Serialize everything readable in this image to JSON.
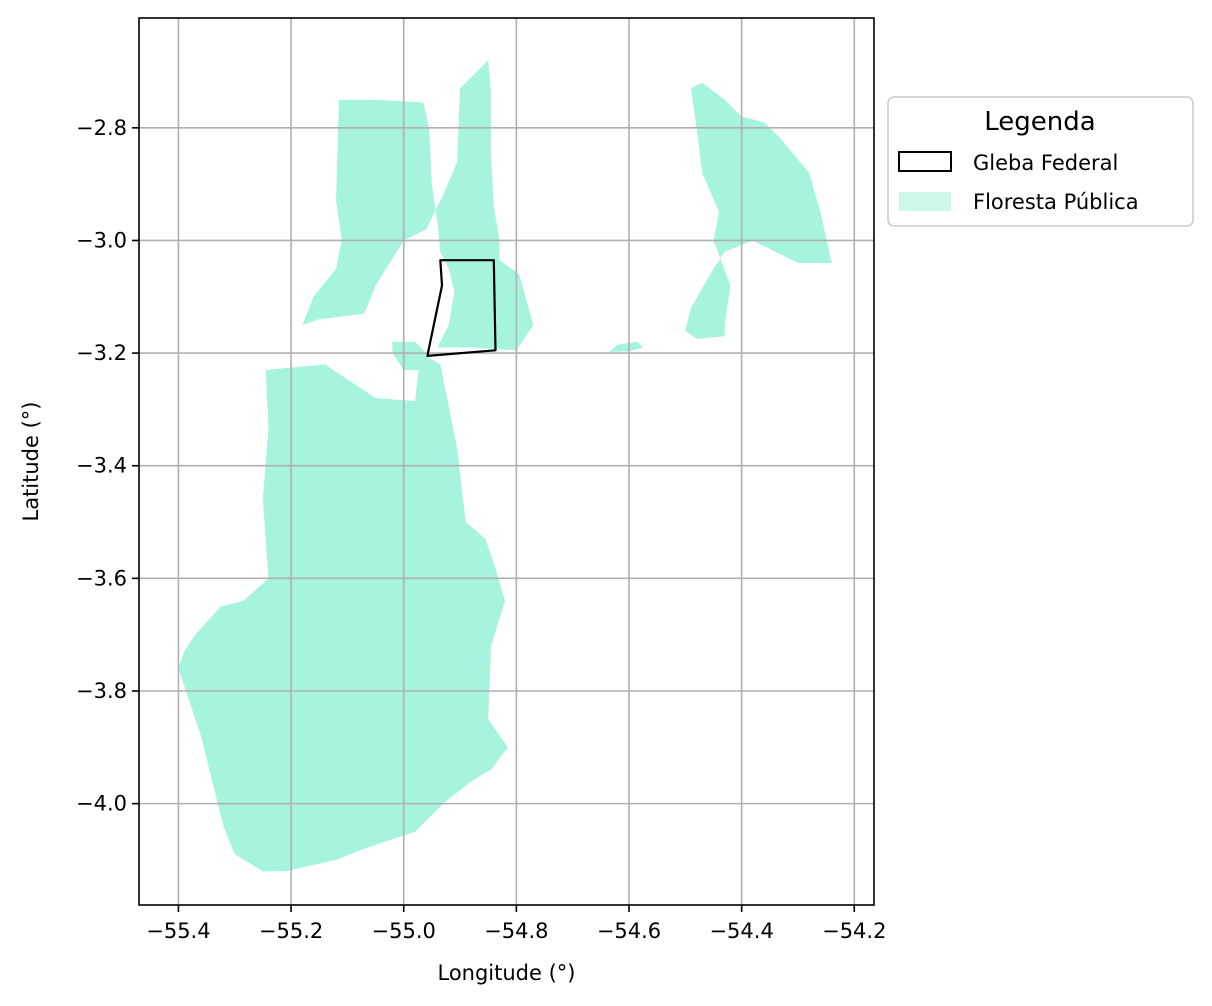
{
  "chart_data": {
    "type": "map",
    "xlabel": "Longitude (°)",
    "ylabel": "Latitude (°)",
    "xlim": [
      -55.47,
      -54.165
    ],
    "ylim": [
      -4.18,
      -2.605
    ],
    "x_ticks": [
      -55.4,
      -55.2,
      -55.0,
      -54.8,
      -54.6,
      -54.4,
      -54.2
    ],
    "x_tick_labels": [
      "−55.4",
      "−55.2",
      "−55.0",
      "−54.8",
      "−54.6",
      "−54.4",
      "−54.2"
    ],
    "y_ticks": [
      -2.8,
      -3.0,
      -3.2,
      -3.4,
      -3.6,
      -3.8,
      -4.0
    ],
    "y_tick_labels": [
      "−2.8",
      "−3.0",
      "−3.2",
      "−3.4",
      "−3.6",
      "−3.8",
      "−4.0"
    ],
    "grid": true,
    "legend": {
      "title": "Legenda",
      "placement": "outside-upper-right",
      "entries": [
        {
          "label": "Gleba Federal",
          "style": "outline",
          "color": "#000000"
        },
        {
          "label": "Floresta Pública",
          "style": "fill",
          "color": "#a6f4dd"
        }
      ]
    },
    "layers": {
      "floresta_publica": {
        "color": "#a6f4dd",
        "polygons": [
          [
            [
              -55.245,
              -3.23
            ],
            [
              -55.14,
              -3.22
            ],
            [
              -55.05,
              -3.28
            ],
            [
              -54.98,
              -3.285
            ],
            [
              -54.97,
              -3.2
            ],
            [
              -54.935,
              -3.22
            ],
            [
              -54.905,
              -3.37
            ],
            [
              -54.89,
              -3.5
            ],
            [
              -54.855,
              -3.53
            ],
            [
              -54.838,
              -3.58
            ],
            [
              -54.82,
              -3.64
            ],
            [
              -54.845,
              -3.72
            ],
            [
              -54.85,
              -3.85
            ],
            [
              -54.815,
              -3.9
            ],
            [
              -54.845,
              -3.94
            ],
            [
              -54.88,
              -3.96
            ],
            [
              -54.93,
              -4.0
            ],
            [
              -54.98,
              -4.05
            ],
            [
              -55.07,
              -4.08
            ],
            [
              -55.12,
              -4.1
            ],
            [
              -55.21,
              -4.12
            ],
            [
              -55.25,
              -4.12
            ],
            [
              -55.3,
              -4.09
            ],
            [
              -55.32,
              -4.04
            ],
            [
              -55.34,
              -3.96
            ],
            [
              -55.36,
              -3.88
            ],
            [
              -55.4,
              -3.76
            ],
            [
              -55.39,
              -3.73
            ],
            [
              -55.37,
              -3.7
            ],
            [
              -55.325,
              -3.65
            ],
            [
              -55.285,
              -3.64
            ],
            [
              -55.24,
              -3.6
            ],
            [
              -55.25,
              -3.46
            ],
            [
              -55.24,
              -3.33
            ]
          ],
          [
            [
              -55.115,
              -2.75
            ],
            [
              -55.05,
              -2.75
            ],
            [
              -54.965,
              -2.755
            ],
            [
              -54.955,
              -2.8
            ],
            [
              -54.95,
              -2.9
            ],
            [
              -54.94,
              -2.97
            ],
            [
              -54.935,
              -3.02
            ],
            [
              -54.92,
              -3.05
            ],
            [
              -54.91,
              -3.09
            ],
            [
              -54.92,
              -3.15
            ],
            [
              -54.94,
              -3.19
            ],
            [
              -54.88,
              -3.19
            ],
            [
              -54.8,
              -3.195
            ],
            [
              -54.77,
              -3.15
            ],
            [
              -54.795,
              -3.06
            ],
            [
              -54.83,
              -3.035
            ],
            [
              -54.83,
              -3.0
            ],
            [
              -54.84,
              -2.94
            ],
            [
              -54.845,
              -2.85
            ],
            [
              -54.845,
              -2.74
            ],
            [
              -54.85,
              -2.68
            ],
            [
              -54.87,
              -2.7
            ],
            [
              -54.9,
              -2.73
            ],
            [
              -54.905,
              -2.86
            ],
            [
              -54.93,
              -2.92
            ],
            [
              -54.96,
              -2.98
            ],
            [
              -55.0,
              -3.0
            ],
            [
              -55.05,
              -3.08
            ],
            [
              -55.07,
              -3.13
            ],
            [
              -55.15,
              -3.14
            ],
            [
              -55.18,
              -3.15
            ],
            [
              -55.16,
              -3.1
            ],
            [
              -55.12,
              -3.05
            ],
            [
              -55.11,
              -3.0
            ],
            [
              -55.12,
              -2.93
            ]
          ],
          [
            [
              -54.98,
              -3.18
            ],
            [
              -54.96,
              -3.2
            ],
            [
              -54.97,
              -3.23
            ],
            [
              -55.0,
              -3.23
            ],
            [
              -55.02,
              -3.2
            ],
            [
              -55.02,
              -3.18
            ]
          ],
          [
            [
              -54.49,
              -2.73
            ],
            [
              -54.48,
              -2.8
            ],
            [
              -54.47,
              -2.88
            ],
            [
              -54.44,
              -2.95
            ],
            [
              -54.45,
              -3.0
            ],
            [
              -54.42,
              -3.08
            ],
            [
              -54.43,
              -3.15
            ],
            [
              -54.43,
              -3.17
            ],
            [
              -54.48,
              -3.175
            ],
            [
              -54.5,
              -3.16
            ],
            [
              -54.49,
              -3.12
            ],
            [
              -54.45,
              -3.05
            ],
            [
              -54.43,
              -3.02
            ],
            [
              -54.38,
              -3.0
            ],
            [
              -54.3,
              -3.04
            ],
            [
              -54.24,
              -3.04
            ],
            [
              -54.26,
              -2.95
            ],
            [
              -54.28,
              -2.88
            ],
            [
              -54.33,
              -2.82
            ],
            [
              -54.36,
              -2.79
            ],
            [
              -54.4,
              -2.78
            ],
            [
              -54.43,
              -2.75
            ],
            [
              -54.47,
              -2.72
            ]
          ],
          [
            [
              -54.62,
              -3.185
            ],
            [
              -54.585,
              -3.18
            ],
            [
              -54.575,
              -3.19
            ],
            [
              -54.6,
              -3.197
            ],
            [
              -54.635,
              -3.198
            ]
          ]
        ]
      },
      "gleba_federal": {
        "color": "#000000",
        "polygons": [
          [
            [
              -54.935,
              -3.035
            ],
            [
              -54.84,
              -3.035
            ],
            [
              -54.837,
              -3.195
            ],
            [
              -54.958,
              -3.205
            ],
            [
              -54.955,
              -3.19
            ],
            [
              -54.932,
              -3.08
            ]
          ]
        ]
      }
    }
  }
}
